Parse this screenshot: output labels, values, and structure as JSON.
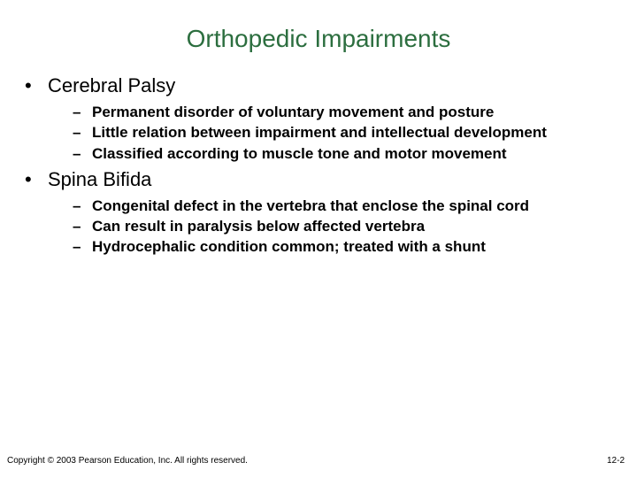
{
  "colors": {
    "title_color": "#2c6e3f",
    "text_color": "#000000",
    "background": "#ffffff"
  },
  "typography": {
    "title_fontsize": 28,
    "level1_fontsize": 22,
    "level2_fontsize": 17,
    "level2_fontweight": "bold",
    "footer_fontsize": 10
  },
  "title": "Orthopedic Impairments",
  "sections": [
    {
      "heading": "Cerebral Palsy",
      "items": [
        "Permanent disorder of voluntary movement and posture",
        "Little relation between impairment and intellectual development",
        "Classified according to muscle tone and motor movement"
      ]
    },
    {
      "heading": "Spina Bifida",
      "items": [
        "Congenital defect in the vertebra that enclose the spinal cord",
        "Can result in paralysis below affected vertebra",
        "Hydrocephalic condition common; treated with a shunt"
      ]
    }
  ],
  "footer": "Copyright © 2003 Pearson Education, Inc. All rights reserved.",
  "page_number": "12-2"
}
